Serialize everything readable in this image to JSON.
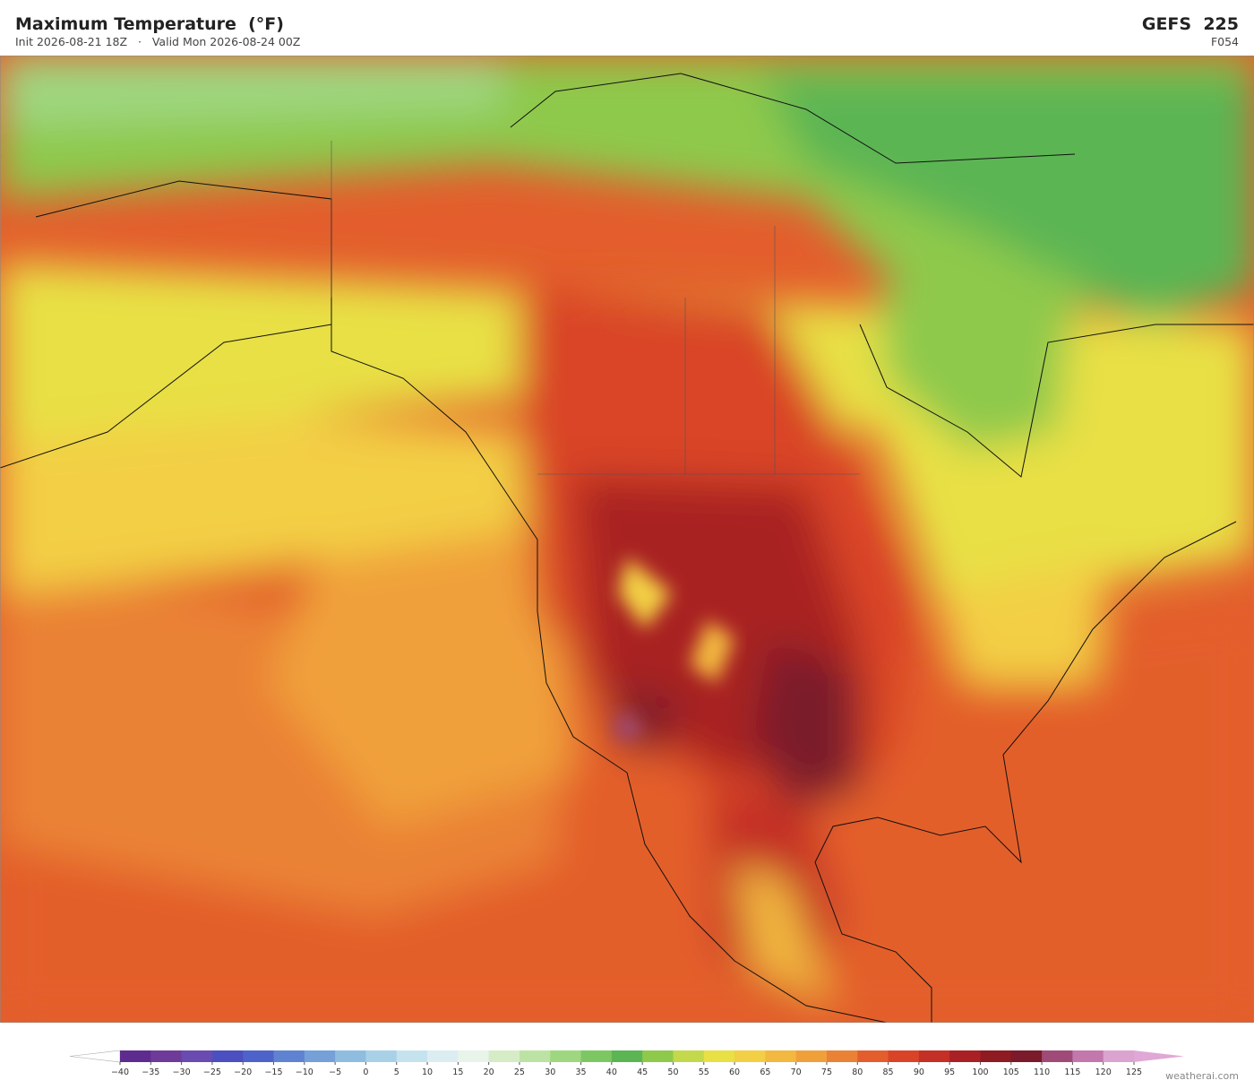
{
  "header": {
    "title": "Maximum Temperature  (°F)",
    "subtitle": "Init 2026-08-21 18Z   ·   Valid Mon 2026-08-24 00Z",
    "model": "GEFS  225",
    "forecast_hour": "F054"
  },
  "colorbar": {
    "ticks": [
      {
        "value": -40,
        "label": "−40"
      },
      {
        "value": -35,
        "label": "−35"
      },
      {
        "value": -30,
        "label": "−30"
      },
      {
        "value": -25,
        "label": "−25"
      },
      {
        "value": -20,
        "label": "−20"
      },
      {
        "value": -15,
        "label": "−15"
      },
      {
        "value": -10,
        "label": "−10"
      },
      {
        "value": -5,
        "label": "−5"
      },
      0,
      5,
      10,
      15,
      20,
      25,
      30,
      35,
      40,
      45,
      50,
      55,
      60,
      65,
      70,
      75,
      80,
      85,
      90,
      95,
      100,
      105,
      110,
      115,
      120,
      125
    ],
    "colors": [
      "#5e2c8f",
      "#6f3b9b",
      "#6a4bb0",
      "#4c4fbf",
      "#4e63c9",
      "#5f83d0",
      "#75a0d8",
      "#8fbde0",
      "#a8d1e8",
      "#c4e3ef",
      "#dcedf2",
      "#e8f4ea",
      "#d5ecc7",
      "#bde3a4",
      "#9fd780",
      "#7dc763",
      "#5bb553",
      "#8ec94c",
      "#c3d84a",
      "#e8e044",
      "#f3cf45",
      "#f2b83f",
      "#f0a03a",
      "#ea8235",
      "#e35e2c",
      "#d94428",
      "#c42f26",
      "#a92124",
      "#8e1a22",
      "#7a1a2a",
      "#a04a78",
      "#c278ac",
      "#dba3cf"
    ],
    "under_color": "#ffffff",
    "over_color": "#e0a8d6"
  },
  "watermark": "weatherai.com"
}
